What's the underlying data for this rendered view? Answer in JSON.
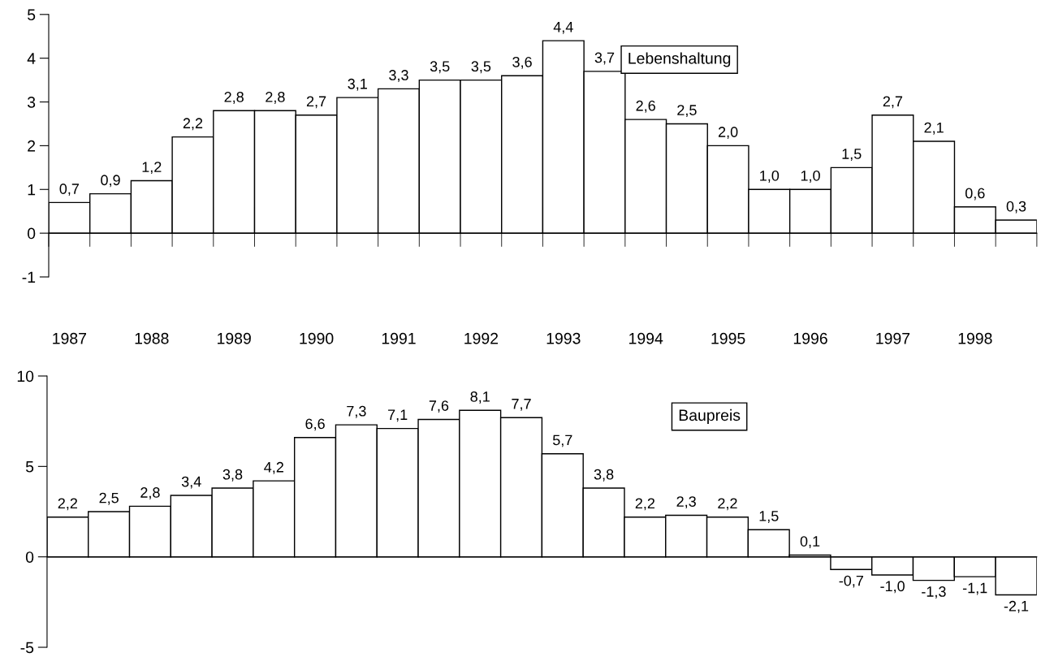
{
  "chart_data": [
    {
      "type": "bar",
      "categories": [
        "1987",
        null,
        "1988",
        null,
        "1989",
        null,
        "1990",
        null,
        "1991",
        null,
        "1992",
        null,
        "1993",
        null,
        "1994",
        null,
        "1995",
        null,
        "1996",
        null,
        "1997",
        null,
        "1998",
        null
      ],
      "series": [
        {
          "name": "Lebenshaltung",
          "color": "#ffffff",
          "values": [
            0.7,
            0.9,
            1.2,
            2.2,
            2.8,
            2.8,
            2.7,
            3.1,
            3.3,
            3.5,
            3.5,
            3.6,
            4.4,
            3.7,
            2.6,
            2.5,
            2.0,
            1.0,
            1.0,
            1.5,
            2.7,
            2.1,
            0.6,
            0.3
          ],
          "value_labels": [
            "0,7",
            "0,9",
            "1,2",
            "2,2",
            "2,8",
            "2,8",
            "2,7",
            "3,1",
            "3,3",
            "3,5",
            "3,5",
            "3,6",
            "4,4",
            "3,7",
            "2,6",
            "2,5",
            "2,0",
            "1,0",
            "1,0",
            "1,5",
            "2,7",
            "2,1",
            "0,6",
            "0,3"
          ]
        }
      ],
      "ylim": [
        -1,
        5
      ],
      "yticks": [
        -1,
        0,
        1,
        2,
        3,
        4,
        5
      ],
      "legend": "top right"
    },
    {
      "type": "bar",
      "categories": [
        "1987",
        null,
        "1988",
        null,
        "1989",
        null,
        "1990",
        null,
        "1991",
        null,
        "1992",
        null,
        "1993",
        null,
        "1994",
        null,
        "1995",
        null,
        "1996",
        null,
        "1997",
        null,
        "1998",
        null
      ],
      "series": [
        {
          "name": "Baupreis",
          "color": "#ffffff",
          "values": [
            2.2,
            2.5,
            2.8,
            3.4,
            3.8,
            4.2,
            6.6,
            7.3,
            7.1,
            7.6,
            8.1,
            7.7,
            5.7,
            3.8,
            2.2,
            2.3,
            2.2,
            1.5,
            0.1,
            -0.7,
            -1.0,
            -1.3,
            -1.1,
            -2.1
          ],
          "value_labels": [
            "2,2",
            "2,5",
            "2,8",
            "3,4",
            "3,8",
            "4,2",
            "6,6",
            "7,3",
            "7,1",
            "7,6",
            "8,1",
            "7,7",
            "5,7",
            "3,8",
            "2,2",
            "2,3",
            "2,2",
            "1,5",
            "0,1",
            "-0,7",
            "-1,0",
            "-1,3",
            "-1,1",
            "-2,1"
          ]
        }
      ],
      "ylim": [
        -5,
        10
      ],
      "yticks": [
        -5,
        0,
        5,
        10
      ],
      "legend": "top right",
      "tick_labels": "y"
    }
  ]
}
